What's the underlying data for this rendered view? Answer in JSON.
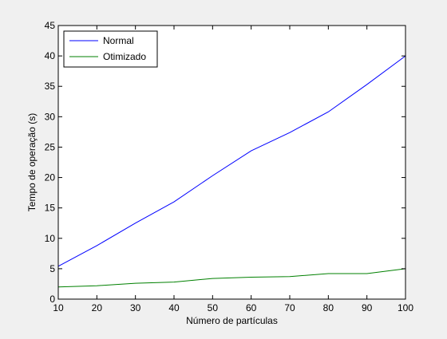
{
  "chart_data": {
    "type": "line",
    "title": "",
    "xlabel": "Número de partículas",
    "ylabel": "Tempo de operação (s)",
    "xlim": [
      10,
      100
    ],
    "ylim": [
      0,
      45
    ],
    "xticks": [
      10,
      20,
      30,
      40,
      50,
      60,
      70,
      80,
      90,
      100
    ],
    "yticks": [
      0,
      5,
      10,
      15,
      20,
      25,
      30,
      35,
      40,
      45
    ],
    "grid": false,
    "legend_position": "top-left",
    "x": [
      10,
      20,
      30,
      40,
      50,
      60,
      70,
      80,
      90,
      100
    ],
    "series": [
      {
        "name": "Normal",
        "color": "#0000ff",
        "values": [
          5.4,
          8.8,
          12.5,
          16.0,
          20.3,
          24.4,
          27.4,
          30.8,
          35.3,
          40.0
        ]
      },
      {
        "name": "Otimizado",
        "color": "#008000",
        "values": [
          2.0,
          2.2,
          2.6,
          2.8,
          3.4,
          3.6,
          3.7,
          4.2,
          4.2,
          5.0
        ]
      }
    ]
  }
}
